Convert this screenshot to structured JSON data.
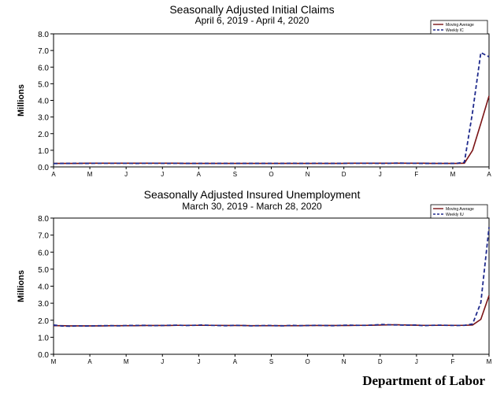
{
  "footer": "Department of Labor",
  "chart_data": [
    {
      "type": "line",
      "title": "Seasonally Adjusted Initial Claims",
      "subtitle": "April 6, 2019 - April 4, 2020",
      "ylabel": "Millions",
      "xlabel": "",
      "ylim": [
        0,
        8
      ],
      "yticks": [
        "0.0",
        "1.0",
        "2.0",
        "3.0",
        "4.0",
        "5.0",
        "6.0",
        "7.0",
        "8.0"
      ],
      "xticks": [
        "A",
        "M",
        "J",
        "J",
        "A",
        "S",
        "O",
        "N",
        "D",
        "J",
        "F",
        "M",
        "A"
      ],
      "grid": false,
      "legend_position": "top-right",
      "series": [
        {
          "name": "Moving Average",
          "color": "#7b1416",
          "dash": "solid",
          "values": [
            0.21,
            0.21,
            0.21,
            0.21,
            0.22,
            0.22,
            0.22,
            0.22,
            0.22,
            0.22,
            0.22,
            0.22,
            0.22,
            0.22,
            0.22,
            0.22,
            0.21,
            0.21,
            0.21,
            0.21,
            0.21,
            0.21,
            0.21,
            0.21,
            0.21,
            0.21,
            0.21,
            0.21,
            0.21,
            0.21,
            0.21,
            0.21,
            0.21,
            0.21,
            0.21,
            0.21,
            0.22,
            0.22,
            0.22,
            0.22,
            0.22,
            0.22,
            0.22,
            0.22,
            0.22,
            0.22,
            0.21,
            0.21,
            0.21,
            0.21,
            0.22,
            1.0,
            2.61,
            4.27
          ]
        },
        {
          "name": "Weekly IC",
          "color": "#1f2a8c",
          "dash": "dashed",
          "values": [
            0.2,
            0.21,
            0.21,
            0.22,
            0.21,
            0.22,
            0.22,
            0.22,
            0.22,
            0.22,
            0.21,
            0.22,
            0.22,
            0.22,
            0.21,
            0.22,
            0.21,
            0.21,
            0.21,
            0.21,
            0.21,
            0.21,
            0.21,
            0.21,
            0.21,
            0.21,
            0.21,
            0.21,
            0.21,
            0.22,
            0.21,
            0.21,
            0.22,
            0.21,
            0.21,
            0.21,
            0.22,
            0.22,
            0.22,
            0.22,
            0.21,
            0.22,
            0.23,
            0.22,
            0.22,
            0.21,
            0.21,
            0.21,
            0.21,
            0.21,
            0.28,
            3.31,
            6.87,
            6.62
          ]
        }
      ]
    },
    {
      "type": "line",
      "title": "Seasonally Adjusted Insured Unemployment",
      "subtitle": "March 30, 2019 - March 28, 2020",
      "ylabel": "Millions",
      "xlabel": "",
      "ylim": [
        0,
        8
      ],
      "yticks": [
        "0.0",
        "1.0",
        "2.0",
        "3.0",
        "4.0",
        "5.0",
        "6.0",
        "7.0",
        "8.0"
      ],
      "xticks": [
        "M",
        "A",
        "M",
        "J",
        "J",
        "A",
        "S",
        "O",
        "N",
        "D",
        "J",
        "F",
        "M"
      ],
      "grid": false,
      "legend_position": "top-right",
      "series": [
        {
          "name": "Moving Average",
          "color": "#7b1416",
          "dash": "solid",
          "values": [
            1.68,
            1.68,
            1.67,
            1.67,
            1.67,
            1.67,
            1.67,
            1.68,
            1.68,
            1.68,
            1.68,
            1.69,
            1.69,
            1.69,
            1.69,
            1.7,
            1.7,
            1.7,
            1.7,
            1.7,
            1.7,
            1.69,
            1.69,
            1.69,
            1.68,
            1.68,
            1.68,
            1.68,
            1.68,
            1.68,
            1.68,
            1.69,
            1.69,
            1.69,
            1.69,
            1.69,
            1.69,
            1.7,
            1.7,
            1.71,
            1.72,
            1.73,
            1.73,
            1.72,
            1.71,
            1.7,
            1.7,
            1.7,
            1.7,
            1.7,
            1.7,
            1.72,
            2.05,
            3.45
          ]
        },
        {
          "name": "Weekly IU",
          "color": "#1f2a8c",
          "dash": "dashed",
          "values": [
            1.72,
            1.66,
            1.65,
            1.67,
            1.66,
            1.67,
            1.68,
            1.68,
            1.67,
            1.69,
            1.69,
            1.7,
            1.68,
            1.69,
            1.7,
            1.71,
            1.69,
            1.7,
            1.72,
            1.7,
            1.69,
            1.68,
            1.7,
            1.69,
            1.67,
            1.68,
            1.69,
            1.68,
            1.67,
            1.7,
            1.68,
            1.69,
            1.7,
            1.69,
            1.68,
            1.7,
            1.71,
            1.7,
            1.7,
            1.72,
            1.75,
            1.73,
            1.72,
            1.71,
            1.72,
            1.68,
            1.7,
            1.71,
            1.7,
            1.69,
            1.7,
            1.78,
            3.03,
            7.46
          ]
        }
      ]
    }
  ]
}
